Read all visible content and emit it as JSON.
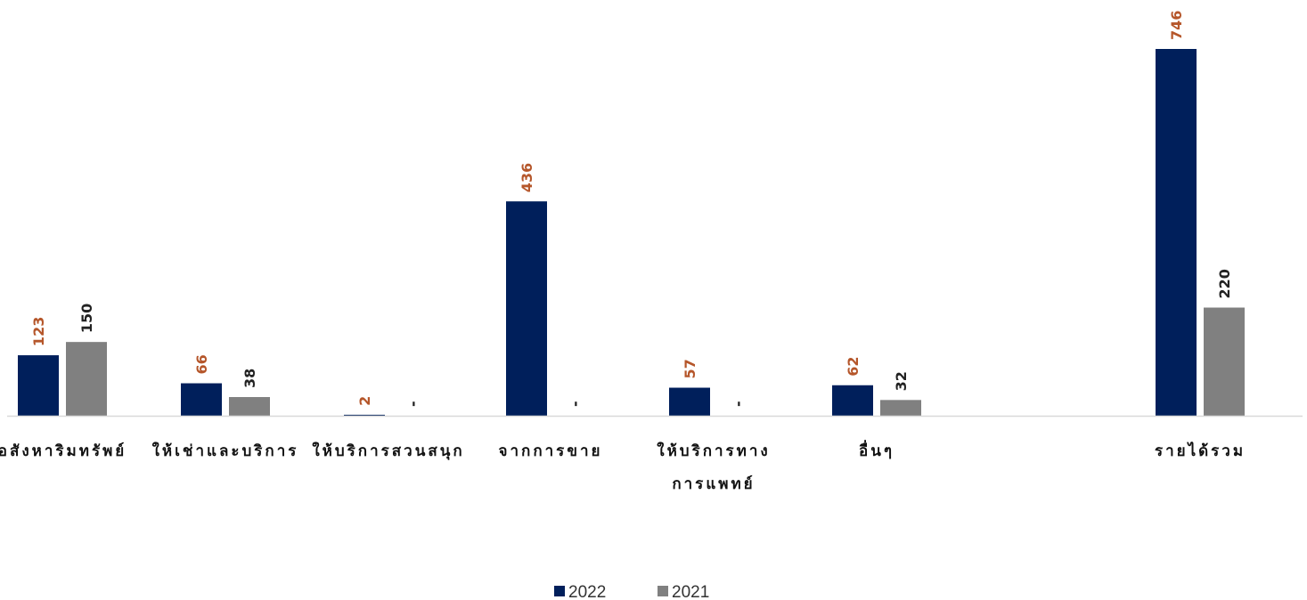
{
  "chart_data": {
    "type": "bar",
    "title": "",
    "categories": [
      [
        "อสังหาริมทรัพย์"
      ],
      [
        "ให้เช่าและบริการ"
      ],
      [
        "ให้บริการสวนสนุก"
      ],
      [
        "จากการขาย"
      ],
      [
        "ให้บริการทาง",
        "การแพทย์"
      ],
      [
        "อื่นๆ"
      ],
      [
        "รายได้รวม"
      ]
    ],
    "series": [
      {
        "name": "2022",
        "color": "#001f5b",
        "label_color": "#b5562a",
        "values": [
          123,
          66,
          2,
          436,
          57,
          62,
          746
        ],
        "labels": [
          "123",
          "66",
          "2",
          "436",
          "57",
          "62",
          "746"
        ]
      },
      {
        "name": "2021",
        "color": "#808080",
        "label_color": "#222222",
        "values": [
          150,
          38,
          0,
          0,
          0,
          32,
          220
        ],
        "labels": [
          "150",
          "38",
          "-",
          "-",
          "-",
          "32",
          "220"
        ]
      }
    ],
    "ylim": [
      0,
      746
    ],
    "grid": false,
    "legend": "bottom-center"
  }
}
